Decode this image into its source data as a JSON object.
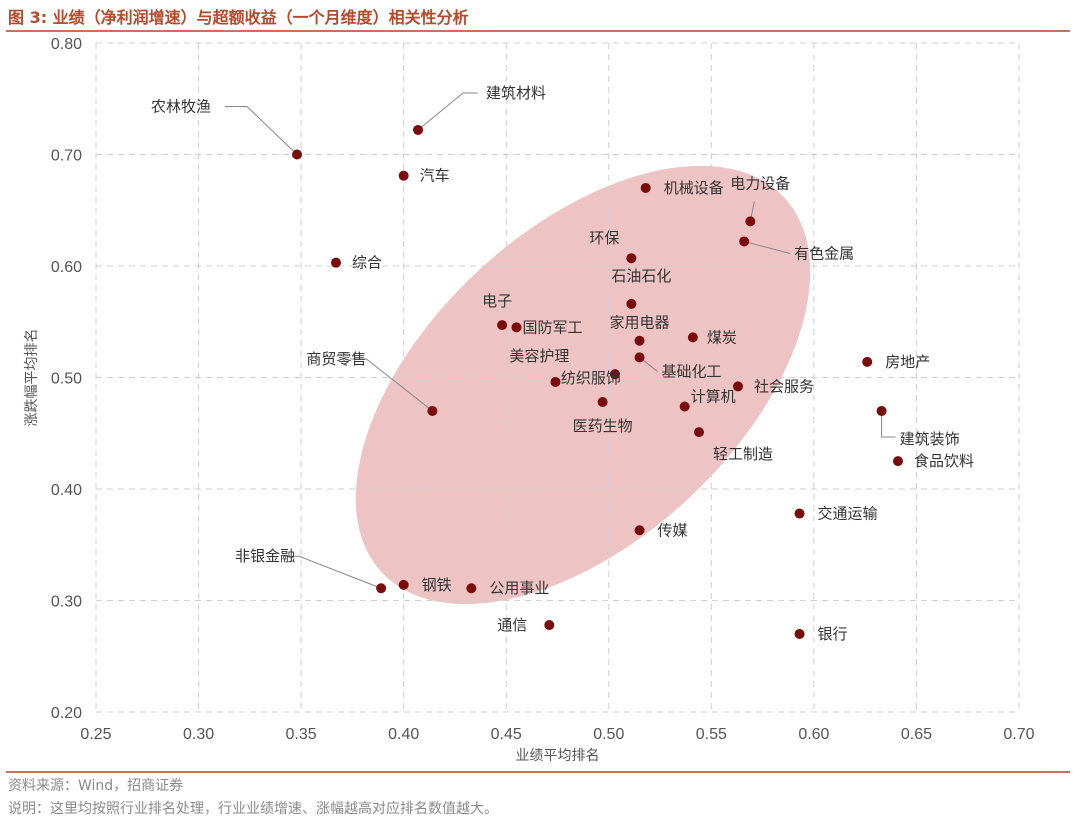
{
  "header": {
    "title": "图 3:  业绩（净利润增速）与超额收益（一个月维度）相关性分析"
  },
  "footer": {
    "source": "资料来源：Wind，招商证券",
    "note": "说明：这里均按照行业排名处理，行业业绩增速、涨幅越高对应排名数值越大。"
  },
  "colors": {
    "accent": "#b5492a",
    "marker": "#7a0c0c",
    "ellipse": "#eab4b4",
    "grid": "#cfcfcf"
  },
  "chart_data": {
    "type": "scatter",
    "xlabel": "业绩平均排名",
    "ylabel": "涨跌幅平均排名",
    "xlim": [
      0.25,
      0.7
    ],
    "ylim": [
      0.2,
      0.8
    ],
    "xticks": [
      "0.25",
      "0.30",
      "0.35",
      "0.40",
      "0.45",
      "0.50",
      "0.55",
      "0.60",
      "0.65",
      "0.70"
    ],
    "yticks": [
      "0.20",
      "0.30",
      "0.40",
      "0.50",
      "0.60",
      "0.70",
      "0.80"
    ],
    "grid": true,
    "points": [
      {
        "label": "农林牧渔",
        "x": 0.348,
        "y": 0.7
      },
      {
        "label": "建筑材料",
        "x": 0.407,
        "y": 0.722
      },
      {
        "label": "汽车",
        "x": 0.4,
        "y": 0.681
      },
      {
        "label": "综合",
        "x": 0.367,
        "y": 0.603
      },
      {
        "label": "机械设备",
        "x": 0.518,
        "y": 0.67
      },
      {
        "label": "电力设备",
        "x": 0.569,
        "y": 0.64
      },
      {
        "label": "有色金属",
        "x": 0.566,
        "y": 0.622
      },
      {
        "label": "环保",
        "x": 0.511,
        "y": 0.607
      },
      {
        "label": "石油石化",
        "x": 0.511,
        "y": 0.566
      },
      {
        "label": "电子",
        "x": 0.448,
        "y": 0.547
      },
      {
        "label": "国防军工",
        "x": 0.455,
        "y": 0.545
      },
      {
        "label": "家用电器",
        "x": 0.515,
        "y": 0.533
      },
      {
        "label": "煤炭",
        "x": 0.541,
        "y": 0.536
      },
      {
        "label": "美容护理",
        "x": 0.474,
        "y": 0.496
      },
      {
        "label": "基础化工",
        "x": 0.515,
        "y": 0.518
      },
      {
        "label": "纺织服饰",
        "x": 0.503,
        "y": 0.503
      },
      {
        "label": "商贸零售",
        "x": 0.414,
        "y": 0.47
      },
      {
        "label": "医药生物",
        "x": 0.497,
        "y": 0.478
      },
      {
        "label": "计算机",
        "x": 0.537,
        "y": 0.474
      },
      {
        "label": "轻工制造",
        "x": 0.544,
        "y": 0.451
      },
      {
        "label": "社会服务",
        "x": 0.563,
        "y": 0.492
      },
      {
        "label": "房地产",
        "x": 0.626,
        "y": 0.514
      },
      {
        "label": "建筑装饰",
        "x": 0.633,
        "y": 0.47
      },
      {
        "label": "食品饮料",
        "x": 0.641,
        "y": 0.425
      },
      {
        "label": "交通运输",
        "x": 0.593,
        "y": 0.378
      },
      {
        "label": "传媒",
        "x": 0.515,
        "y": 0.363
      },
      {
        "label": "非银金融",
        "x": 0.389,
        "y": 0.311
      },
      {
        "label": "钢铁",
        "x": 0.4,
        "y": 0.314
      },
      {
        "label": "公用事业",
        "x": 0.433,
        "y": 0.311
      },
      {
        "label": "通信",
        "x": 0.471,
        "y": 0.278
      },
      {
        "label": "银行",
        "x": 0.593,
        "y": 0.27
      }
    ]
  }
}
